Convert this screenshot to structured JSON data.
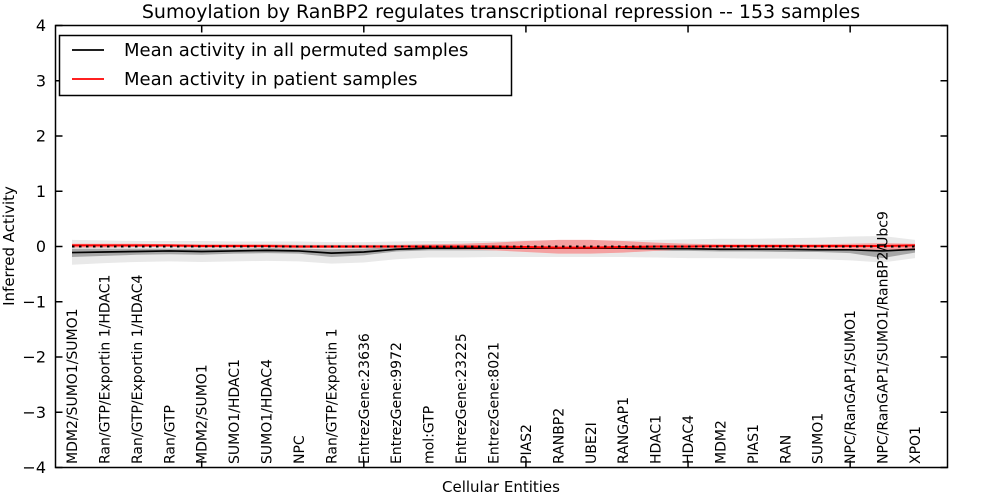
{
  "figure": {
    "background": "#ffffff"
  },
  "chart_data": {
    "type": "line",
    "title": "Sumoylation by RanBP2 regulates transcriptional repression -- 153 samples",
    "xlabel": "Cellular Entities",
    "ylabel": "Inferred Activity",
    "ylim": [
      -4,
      4
    ],
    "yticks": [
      -4,
      -3,
      -2,
      -1,
      0,
      1,
      2,
      3,
      4
    ],
    "x_major_tick_indices": [
      4,
      9,
      14,
      19,
      24
    ],
    "grid": false,
    "legend": {
      "position": "upper-left",
      "entries": [
        {
          "label": "Mean activity in all permuted samples",
          "color": "#000000"
        },
        {
          "label": "Mean activity in patient samples",
          "color": "#ff0000"
        }
      ]
    },
    "zero_line": {
      "y": 0,
      "style": "dotted",
      "color": "#000000"
    },
    "categories": [
      "MDM2/SUMO1/SUMO1",
      "Ran/GTP/Exportin 1/HDAC1",
      "Ran/GTP/Exportin 1/HDAC4",
      "Ran/GTP",
      "MDM2/SUMO1",
      "SUMO1/HDAC1",
      "SUMO1/HDAC4",
      "NPC",
      "Ran/GTP/Exportin 1",
      "EntrezGene:23636",
      "EntrezGene:9972",
      "mol:GTP",
      "EntrezGene:23225",
      "EntrezGene:8021",
      "PIAS2",
      "RANBP2",
      "UBE2I",
      "RANGAP1",
      "HDAC1",
      "HDAC4",
      "MDM2",
      "PIAS1",
      "RAN",
      "SUMO1",
      "NPC/RanGAP1/SUMO1",
      "NPC/RanGAP1/SUMO1/RanBP2/Ubc9",
      "XPO1"
    ],
    "series": [
      {
        "name": "Mean activity in all permuted samples",
        "color": "#000000",
        "values": [
          -0.11,
          -0.1,
          -0.09,
          -0.08,
          -0.09,
          -0.08,
          -0.07,
          -0.08,
          -0.12,
          -0.1,
          -0.05,
          -0.03,
          -0.03,
          -0.03,
          -0.03,
          -0.03,
          -0.03,
          -0.03,
          -0.04,
          -0.04,
          -0.05,
          -0.05,
          -0.05,
          -0.06,
          -0.06,
          -0.08,
          -0.05
        ]
      },
      {
        "name": "Mean activity in patient samples",
        "color": "#ff0000",
        "values": [
          0.02,
          0.02,
          0.02,
          0.02,
          0.01,
          0.01,
          0.01,
          0.0,
          0.0,
          0.0,
          0.0,
          0.0,
          0.0,
          0.0,
          -0.01,
          -0.02,
          -0.02,
          -0.01,
          0.0,
          0.0,
          0.01,
          0.01,
          0.01,
          0.01,
          0.01,
          0.01,
          0.02
        ]
      }
    ],
    "bands": [
      {
        "name": "permuted-samples-outer-band",
        "color": "#e9e9e9",
        "high": [
          0.12,
          0.11,
          0.1,
          0.1,
          0.1,
          0.09,
          0.09,
          0.09,
          0.08,
          0.08,
          0.09,
          0.1,
          0.1,
          0.1,
          0.11,
          0.11,
          0.11,
          0.11,
          0.12,
          0.13,
          0.14,
          0.14,
          0.15,
          0.16,
          0.18,
          0.19,
          0.12
        ],
        "low": [
          -0.33,
          -0.3,
          -0.28,
          -0.27,
          -0.28,
          -0.27,
          -0.26,
          -0.27,
          -0.31,
          -0.29,
          -0.23,
          -0.2,
          -0.2,
          -0.19,
          -0.19,
          -0.19,
          -0.19,
          -0.19,
          -0.2,
          -0.21,
          -0.21,
          -0.22,
          -0.22,
          -0.23,
          -0.25,
          -0.29,
          -0.21
        ]
      },
      {
        "name": "permuted-samples-inner-band",
        "color": "#a6a6a6",
        "high": [
          -0.04,
          -0.04,
          -0.04,
          -0.04,
          -0.04,
          -0.04,
          -0.03,
          -0.04,
          -0.05,
          -0.04,
          -0.01,
          0.0,
          0.0,
          0.0,
          0.0,
          0.0,
          0.0,
          0.0,
          -0.01,
          -0.01,
          -0.01,
          -0.01,
          -0.02,
          -0.02,
          -0.02,
          -0.02,
          -0.01
        ],
        "low": [
          -0.19,
          -0.17,
          -0.15,
          -0.14,
          -0.15,
          -0.13,
          -0.12,
          -0.13,
          -0.19,
          -0.16,
          -0.09,
          -0.07,
          -0.07,
          -0.07,
          -0.07,
          -0.07,
          -0.07,
          -0.07,
          -0.08,
          -0.08,
          -0.09,
          -0.09,
          -0.1,
          -0.1,
          -0.12,
          -0.21,
          -0.11
        ]
      },
      {
        "name": "patient-samples-band",
        "color": "#f4a1a1",
        "high": [
          0.05,
          0.05,
          0.05,
          0.04,
          0.04,
          0.04,
          0.04,
          0.03,
          0.03,
          0.03,
          0.03,
          0.04,
          0.05,
          0.07,
          0.1,
          0.12,
          0.12,
          0.1,
          0.07,
          0.05,
          0.04,
          0.04,
          0.04,
          0.04,
          0.05,
          0.06,
          0.05
        ],
        "low": [
          -0.02,
          -0.02,
          -0.01,
          -0.01,
          -0.02,
          -0.02,
          -0.02,
          -0.03,
          -0.03,
          -0.03,
          -0.03,
          -0.04,
          -0.05,
          -0.07,
          -0.1,
          -0.13,
          -0.13,
          -0.11,
          -0.08,
          -0.05,
          -0.04,
          -0.04,
          -0.04,
          -0.04,
          -0.05,
          -0.06,
          -0.05
        ]
      }
    ]
  }
}
